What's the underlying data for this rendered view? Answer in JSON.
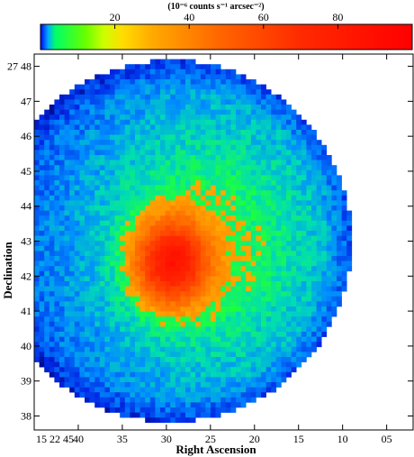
{
  "chart_data": {
    "type": "heatmap",
    "colorbar": {
      "title": "(10⁻⁶ counts s⁻¹ arcsec⁻²)",
      "range": [
        0,
        100
      ],
      "ticks": [
        {
          "value": 20,
          "label": "20"
        },
        {
          "value": 40,
          "label": "40"
        },
        {
          "value": 60,
          "label": "60"
        },
        {
          "value": 80,
          "label": "80"
        }
      ]
    },
    "xlabel": "Right Ascension",
    "ylabel": "Declination",
    "x_ticks": [
      {
        "value": 0,
        "label": "15 22 45"
      },
      {
        "value": 5,
        "label": "40"
      },
      {
        "value": 10,
        "label": "35"
      },
      {
        "value": 15,
        "label": "30"
      },
      {
        "value": 20,
        "label": "25"
      },
      {
        "value": 25,
        "label": "20"
      },
      {
        "value": 30,
        "label": "15"
      },
      {
        "value": 35,
        "label": "10"
      },
      {
        "value": 40,
        "label": "05"
      }
    ],
    "xlim": [
      0,
      43
    ],
    "y_ticks": [
      {
        "value": 48,
        "label": "27 48"
      },
      {
        "value": 47,
        "label": "47"
      },
      {
        "value": 46,
        "label": "46"
      },
      {
        "value": 45,
        "label": "45"
      },
      {
        "value": 44,
        "label": "44"
      },
      {
        "value": 43,
        "label": "43"
      },
      {
        "value": 42,
        "label": "42"
      },
      {
        "value": 41,
        "label": "41"
      },
      {
        "value": 40,
        "label": "40"
      },
      {
        "value": 39,
        "label": "39"
      },
      {
        "value": 38,
        "label": "38"
      }
    ],
    "ylim": [
      37.6,
      48.35
    ],
    "map": {
      "center": [
        15.5,
        43.0
      ],
      "radius": 20.5,
      "peak_position": [
        15.6,
        42.4
      ],
      "peak_value": 95,
      "halo_value": 30,
      "edge_value": 8
    },
    "grid": false
  }
}
